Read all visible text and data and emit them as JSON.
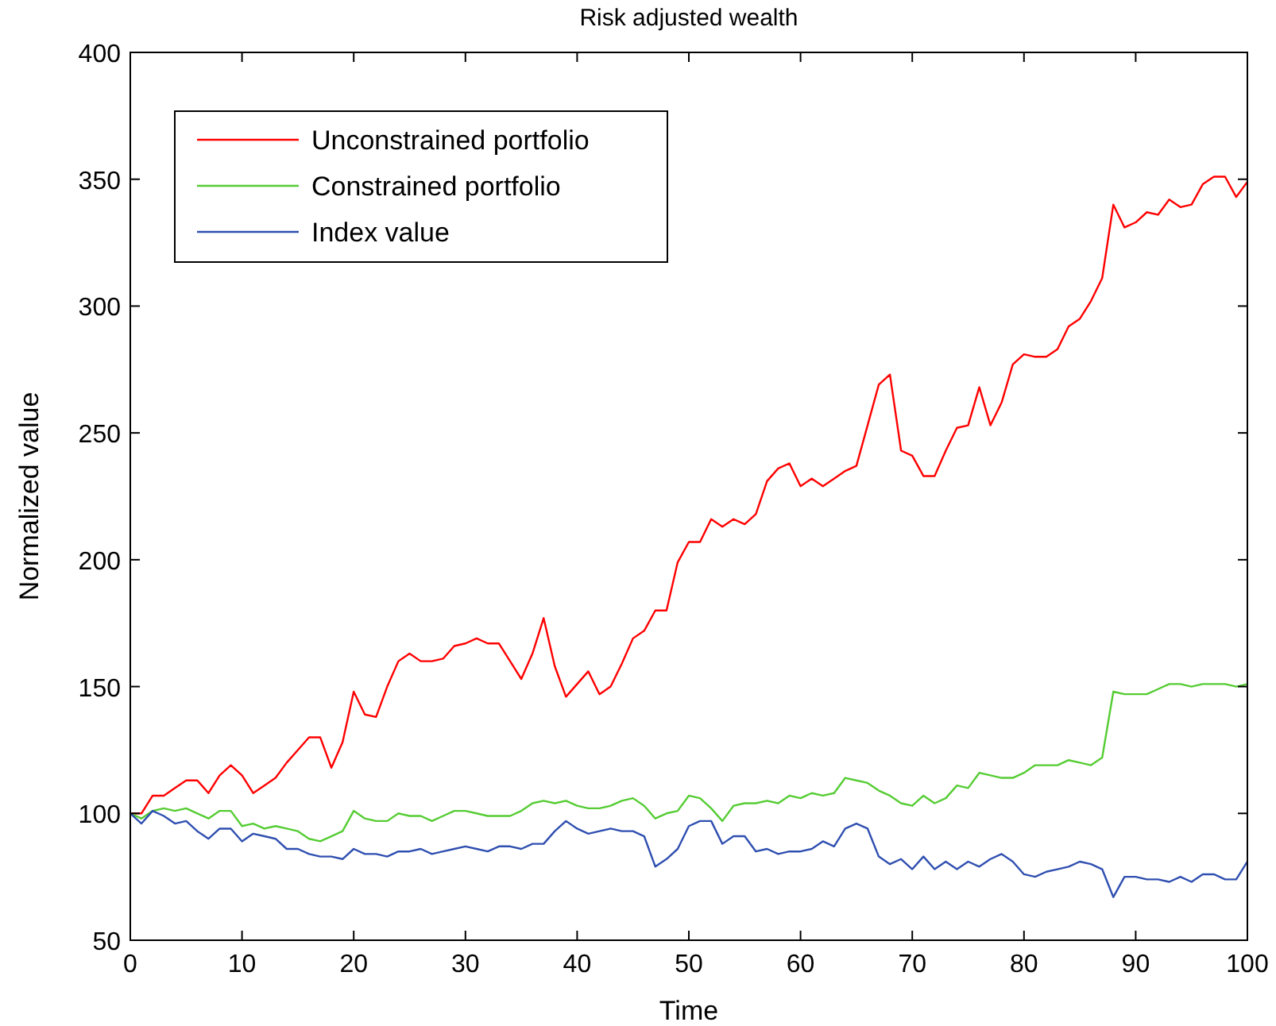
{
  "chart_data": {
    "type": "line",
    "title": "Risk adjusted wealth",
    "xlabel": "Time",
    "ylabel": "Normalized value",
    "x": [
      0,
      1,
      2,
      3,
      4,
      5,
      6,
      7,
      8,
      9,
      10,
      11,
      12,
      13,
      14,
      15,
      16,
      17,
      18,
      19,
      20,
      21,
      22,
      23,
      24,
      25,
      26,
      27,
      28,
      29,
      30,
      31,
      32,
      33,
      34,
      35,
      36,
      37,
      38,
      39,
      40,
      41,
      42,
      43,
      44,
      45,
      46,
      47,
      48,
      49,
      50,
      51,
      52,
      53,
      54,
      55,
      56,
      57,
      58,
      59,
      60,
      61,
      62,
      63,
      64,
      65,
      66,
      67,
      68,
      69,
      70,
      71,
      72,
      73,
      74,
      75,
      76,
      77,
      78,
      79,
      80,
      81,
      82,
      83,
      84,
      85,
      86,
      87,
      88,
      89,
      90,
      91,
      92,
      93,
      94,
      95,
      96,
      97,
      98,
      99,
      100
    ],
    "series": [
      {
        "name": "Unconstrained portfolio",
        "color": "#ff0000",
        "values": [
          100,
          100,
          107,
          107,
          110,
          113,
          113,
          108,
          115,
          119,
          115,
          108,
          111,
          114,
          120,
          125,
          130,
          130,
          118,
          128,
          148,
          139,
          138,
          150,
          160,
          163,
          160,
          160,
          161,
          166,
          167,
          169,
          167,
          167,
          160,
          153,
          163,
          177,
          158,
          146,
          151,
          156,
          147,
          150,
          159,
          169,
          172,
          180,
          180,
          199,
          207,
          207,
          216,
          213,
          216,
          214,
          218,
          231,
          236,
          238,
          229,
          232,
          229,
          232,
          235,
          237,
          253,
          269,
          273,
          243,
          241,
          233,
          233,
          243,
          252,
          253,
          268,
          253,
          262,
          277,
          281,
          280,
          280,
          283,
          292,
          295,
          302,
          311,
          340,
          331,
          333,
          337,
          336,
          342,
          339,
          340,
          348,
          351,
          351,
          343,
          349
        ]
      },
      {
        "name": "Constrained portfolio",
        "color": "#55cc33",
        "values": [
          100,
          98,
          101,
          102,
          101,
          102,
          100,
          98,
          101,
          101,
          95,
          96,
          94,
          95,
          94,
          93,
          90,
          89,
          91,
          93,
          101,
          98,
          97,
          97,
          100,
          99,
          99,
          97,
          99,
          101,
          101,
          100,
          99,
          99,
          99,
          101,
          104,
          105,
          104,
          105,
          103,
          102,
          102,
          103,
          105,
          106,
          103,
          98,
          100,
          101,
          107,
          106,
          102,
          97,
          103,
          104,
          104,
          105,
          104,
          107,
          106,
          108,
          107,
          108,
          114,
          113,
          112,
          109,
          107,
          104,
          103,
          107,
          104,
          106,
          111,
          110,
          116,
          115,
          114,
          114,
          116,
          119,
          119,
          119,
          121,
          120,
          119,
          122,
          148,
          147,
          147,
          147,
          149,
          151,
          151,
          150,
          151,
          151,
          151,
          150,
          151
        ]
      },
      {
        "name": "Index value",
        "color": "#2f4fb0",
        "values": [
          100,
          96,
          101,
          99,
          96,
          97,
          93,
          90,
          94,
          94,
          89,
          92,
          91,
          90,
          86,
          86,
          84,
          83,
          83,
          82,
          86,
          84,
          84,
          83,
          85,
          85,
          86,
          84,
          85,
          86,
          87,
          86,
          85,
          87,
          87,
          86,
          88,
          88,
          93,
          97,
          94,
          92,
          93,
          94,
          93,
          93,
          91,
          79,
          82,
          86,
          95,
          97,
          97,
          88,
          91,
          91,
          85,
          86,
          84,
          85,
          85,
          86,
          89,
          87,
          94,
          96,
          94,
          83,
          80,
          82,
          78,
          83,
          78,
          81,
          78,
          81,
          79,
          82,
          84,
          81,
          76,
          75,
          77,
          78,
          79,
          81,
          80,
          78,
          67,
          75,
          75,
          74,
          74,
          73,
          75,
          73,
          76,
          76,
          74,
          74,
          81
        ]
      }
    ],
    "xlim": [
      0,
      100
    ],
    "xticks": [
      0,
      10,
      20,
      30,
      40,
      50,
      60,
      70,
      80,
      90,
      100
    ],
    "ylim": [
      50,
      400
    ],
    "yticks": [
      50,
      100,
      150,
      200,
      250,
      300,
      350,
      400
    ],
    "legend": "top left",
    "grid": false,
    "marker": "none",
    "line_style": "solid"
  }
}
